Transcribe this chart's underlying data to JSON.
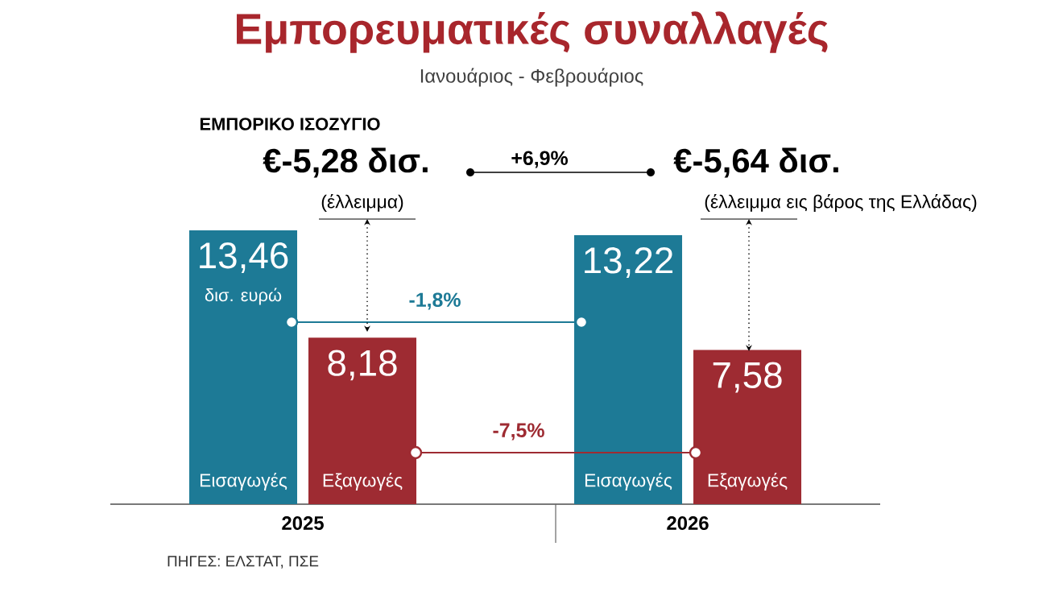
{
  "chart_data": {
    "type": "bar",
    "title": "Εμπορευματικές συναλλαγές",
    "subtitle": "Ιανουάριος - Φεβρουάριος",
    "categories": [
      "2025",
      "2026"
    ],
    "series": [
      {
        "name": "Εισαγωγές",
        "color": "#1d7a96",
        "values": [
          13.46,
          13.22
        ],
        "value_labels": [
          "13,46",
          "13,22"
        ]
      },
      {
        "name": "Εξαγωγές",
        "color": "#9e2b32",
        "values": [
          8.18,
          7.58
        ],
        "value_labels": [
          "8,18",
          "7,58"
        ]
      }
    ],
    "annotations": [
      "ΕΜΠΟΡΙΚΟ ΙΣΟΖΥΓΙΟ",
      "€-5,28 δισ.",
      "(έλλειμμα)",
      "+6,9%",
      "€-5,64 δισ.",
      "(έλλειμμα εις βάρος της Ελλάδας)",
      "δισ. ευρώ",
      "-1,8%",
      "-7,5%",
      "ΠΗΓΕΣ: ΕΛΣΤΑΤ, ΠΣΕ"
    ]
  }
}
